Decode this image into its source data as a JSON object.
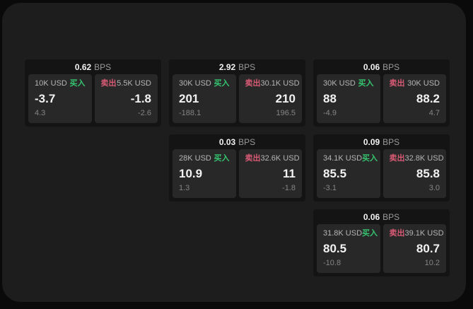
{
  "labels": {
    "buy": "买入",
    "sell": "卖出",
    "bps_unit": "BPS"
  },
  "colors": {
    "buy_green": "#35c46f",
    "sell_red": "#d85a74",
    "window_bg": "#1d1d1d",
    "card_bg": "#141414",
    "panel_bg": "#282828"
  },
  "cards": [
    {
      "bps": "0.62",
      "grid": {
        "row": 0,
        "col": 0
      },
      "buy": {
        "amount": "10K USD",
        "value": "-3.7",
        "delta": "4.3"
      },
      "sell": {
        "amount": "5.5K USD",
        "value": "-1.8",
        "delta": "-2.6"
      }
    },
    {
      "bps": "2.92",
      "grid": {
        "row": 0,
        "col": 1
      },
      "buy": {
        "amount": "30K USD",
        "value": "201",
        "delta": "-188.1"
      },
      "sell": {
        "amount": "30.1K USD",
        "value": "210",
        "delta": "196.5"
      }
    },
    {
      "bps": "0.06",
      "grid": {
        "row": 0,
        "col": 2
      },
      "buy": {
        "amount": "30K USD",
        "value": "88",
        "delta": "-4.9"
      },
      "sell": {
        "amount": "30K USD",
        "value": "88.2",
        "delta": "4.7"
      }
    },
    {
      "bps": "0.03",
      "grid": {
        "row": 1,
        "col": 1
      },
      "buy": {
        "amount": "28K USD",
        "value": "10.9",
        "delta": "1.3"
      },
      "sell": {
        "amount": "32.6K USD",
        "value": "11",
        "delta": "-1.8"
      }
    },
    {
      "bps": "0.09",
      "grid": {
        "row": 1,
        "col": 2
      },
      "buy": {
        "amount": "34.1K USD",
        "value": "85.5",
        "delta": "-3.1"
      },
      "sell": {
        "amount": "32.8K USD",
        "value": "85.8",
        "delta": "3.0"
      }
    },
    {
      "bps": "0.06",
      "grid": {
        "row": 2,
        "col": 2
      },
      "buy": {
        "amount": "31.8K USD",
        "value": "80.5",
        "delta": "-10.8"
      },
      "sell": {
        "amount": "39.1K USD",
        "value": "80.7",
        "delta": "10.2"
      }
    }
  ]
}
